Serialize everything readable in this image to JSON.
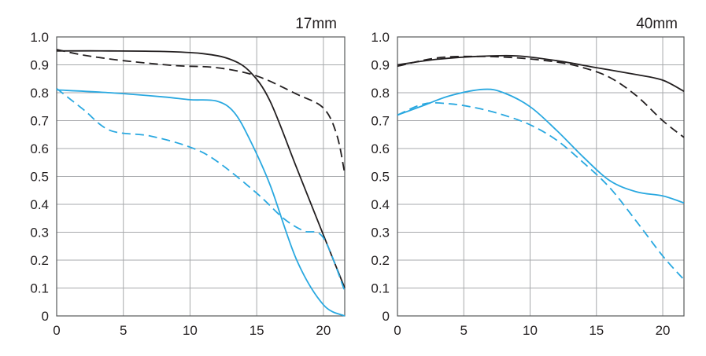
{
  "chart_data": [
    {
      "type": "line",
      "title": "17mm",
      "xlabel": "",
      "ylabel": "",
      "xlim": [
        0,
        21.6
      ],
      "ylim": [
        0,
        1.0
      ],
      "x_ticks": [
        "0",
        "5",
        "10",
        "15",
        "20"
      ],
      "y_ticks": [
        "0",
        "0.1",
        "0.2",
        "0.3",
        "0.4",
        "0.5",
        "0.6",
        "0.7",
        "0.8",
        "0.9",
        "1.0"
      ],
      "grid": true,
      "series": [
        {
          "color": "#231f20",
          "dash": false,
          "points": [
            [
              0,
              0.95
            ],
            [
              4,
              0.95
            ],
            [
              8,
              0.948
            ],
            [
              11,
              0.94
            ],
            [
              13,
              0.92
            ],
            [
              14.5,
              0.875
            ],
            [
              16,
              0.77
            ],
            [
              18,
              0.53
            ],
            [
              20,
              0.29
            ],
            [
              21.6,
              0.1
            ]
          ]
        },
        {
          "color": "#231f20",
          "dash": true,
          "points": [
            [
              0,
              0.955
            ],
            [
              2,
              0.935
            ],
            [
              5,
              0.915
            ],
            [
              9,
              0.897
            ],
            [
              12,
              0.89
            ],
            [
              15,
              0.86
            ],
            [
              18,
              0.795
            ],
            [
              20,
              0.745
            ],
            [
              21,
              0.65
            ],
            [
              21.6,
              0.51
            ]
          ]
        },
        {
          "color": "#29a8e0",
          "dash": false,
          "points": [
            [
              0,
              0.81
            ],
            [
              4,
              0.8
            ],
            [
              8,
              0.785
            ],
            [
              10,
              0.775
            ],
            [
              12,
              0.77
            ],
            [
              13.3,
              0.73
            ],
            [
              14.5,
              0.63
            ],
            [
              16,
              0.47
            ],
            [
              18,
              0.2
            ],
            [
              20,
              0.04
            ],
            [
              21.6,
              0.0
            ]
          ]
        },
        {
          "color": "#29a8e0",
          "dash": true,
          "points": [
            [
              0,
              0.815
            ],
            [
              2,
              0.74
            ],
            [
              4,
              0.665
            ],
            [
              7,
              0.645
            ],
            [
              10,
              0.605
            ],
            [
              12,
              0.555
            ],
            [
              15,
              0.44
            ],
            [
              17,
              0.35
            ],
            [
              18.5,
              0.305
            ],
            [
              20,
              0.28
            ],
            [
              21.6,
              0.09
            ]
          ]
        }
      ]
    },
    {
      "type": "line",
      "title": "40mm",
      "xlabel": "",
      "ylabel": "",
      "xlim": [
        0,
        21.6
      ],
      "ylim": [
        0,
        1.0
      ],
      "x_ticks": [
        "0",
        "5",
        "10",
        "15",
        "20"
      ],
      "y_ticks": [
        "0",
        "0.1",
        "0.2",
        "0.3",
        "0.4",
        "0.5",
        "0.6",
        "0.7",
        "0.8",
        "0.9",
        "1.0"
      ],
      "grid": true,
      "series": [
        {
          "color": "#231f20",
          "dash": false,
          "points": [
            [
              0,
              0.9
            ],
            [
              3,
              0.92
            ],
            [
              6,
              0.93
            ],
            [
              9,
              0.932
            ],
            [
              12,
              0.915
            ],
            [
              15,
              0.89
            ],
            [
              18,
              0.865
            ],
            [
              20,
              0.845
            ],
            [
              21.6,
              0.805
            ]
          ]
        },
        {
          "color": "#231f20",
          "dash": true,
          "points": [
            [
              0,
              0.895
            ],
            [
              3,
              0.925
            ],
            [
              6,
              0.93
            ],
            [
              9,
              0.925
            ],
            [
              12,
              0.91
            ],
            [
              14,
              0.89
            ],
            [
              16,
              0.855
            ],
            [
              18,
              0.79
            ],
            [
              20,
              0.7
            ],
            [
              21.6,
              0.64
            ]
          ]
        },
        {
          "color": "#29a8e0",
          "dash": false,
          "points": [
            [
              0,
              0.72
            ],
            [
              2,
              0.755
            ],
            [
              4,
              0.79
            ],
            [
              6.5,
              0.812
            ],
            [
              8,
              0.8
            ],
            [
              10,
              0.75
            ],
            [
              12,
              0.665
            ],
            [
              14,
              0.57
            ],
            [
              16,
              0.485
            ],
            [
              18,
              0.445
            ],
            [
              20,
              0.43
            ],
            [
              21.6,
              0.405
            ]
          ]
        },
        {
          "color": "#29a8e0",
          "dash": true,
          "points": [
            [
              0,
              0.72
            ],
            [
              2,
              0.76
            ],
            [
              4,
              0.76
            ],
            [
              6,
              0.745
            ],
            [
              8,
              0.72
            ],
            [
              10,
              0.685
            ],
            [
              12,
              0.63
            ],
            [
              14,
              0.55
            ],
            [
              16,
              0.46
            ],
            [
              18,
              0.34
            ],
            [
              20,
              0.215
            ],
            [
              21.6,
              0.13
            ]
          ]
        }
      ]
    }
  ]
}
